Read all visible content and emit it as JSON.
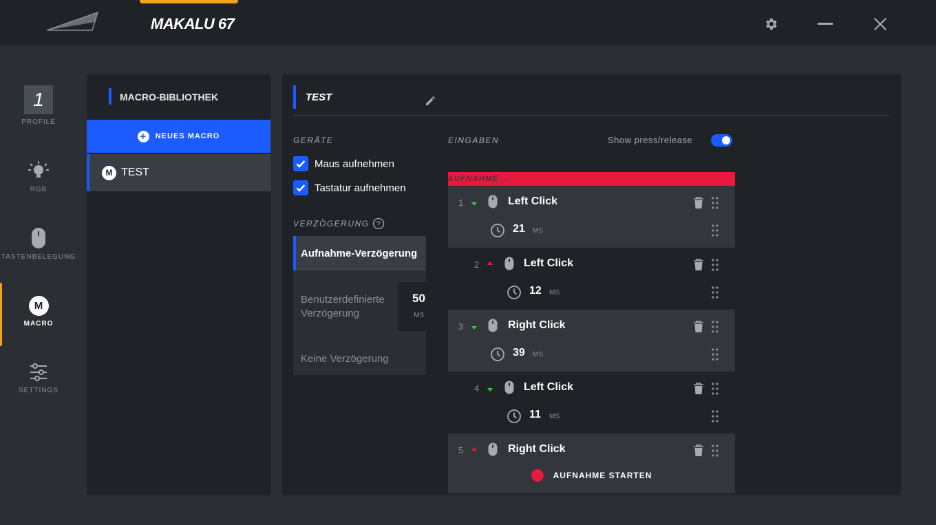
{
  "app": {
    "title": "MAKALU 67"
  },
  "nav": [
    {
      "label": "PROFILE",
      "value": "1",
      "icon": "profile-number-icon"
    },
    {
      "label": "RGB",
      "icon": "lightbulb-icon"
    },
    {
      "label": "TASTENBELEGUNG",
      "icon": "mouse-icon"
    },
    {
      "label": "MACRO",
      "icon": "macro-m-icon",
      "badge": "M",
      "active": true
    },
    {
      "label": "SETTINGS",
      "icon": "sliders-icon"
    }
  ],
  "library": {
    "header": "MACRO-BIBLIOTHEK",
    "new_macro": "NEUES MACRO",
    "items": [
      {
        "badge": "M",
        "name": "TEST"
      }
    ]
  },
  "editor": {
    "macro_name": "TEST",
    "devices_label": "GERÄTE",
    "mouse_record": "Maus aufnehmen",
    "keyboard_record": "Tastatur aufnehmen",
    "delay_label": "VERZÖGERUNG",
    "delay_options": [
      {
        "label": "Aufnahme-Verzögerung",
        "active": true
      },
      {
        "label": "Benutzerdefinierte Verzögerung",
        "value": "50",
        "unit": "MS"
      },
      {
        "label": "Keine Verzögerung"
      }
    ],
    "inputs_label": "EINGABEN",
    "show_press_release": "Show press/release",
    "show_press_release_on": true,
    "recording_label": "AUFNAHME ...",
    "events": [
      {
        "num": "1",
        "direction": "down",
        "label": "Left Click",
        "delay": "21",
        "unit": "MS"
      },
      {
        "num": "2",
        "direction": "up",
        "label": "Left Click",
        "delay": "12",
        "unit": "MS"
      },
      {
        "num": "3",
        "direction": "down",
        "label": "Right Click",
        "delay": "39",
        "unit": "MS"
      },
      {
        "num": "4",
        "direction": "down",
        "label": "Left Click",
        "delay": "11",
        "unit": "MS"
      },
      {
        "num": "5",
        "direction": "up",
        "label": "Right Click"
      }
    ],
    "record_button": "AUFNAHME STARTEN"
  },
  "colors": {
    "accent_blue": "#1a5cff",
    "accent_orange": "#f2a316",
    "record_red": "#e8183f",
    "press_green": "#2ecc40"
  }
}
